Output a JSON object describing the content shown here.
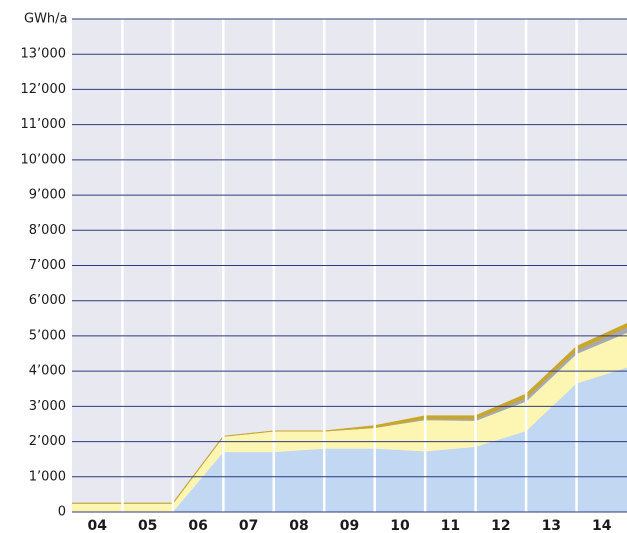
{
  "chart_data": {
    "type": "stacked_area",
    "y_label": "GWh/a",
    "categories": [
      "04",
      "05",
      "06",
      "07",
      "08",
      "09",
      "10",
      "11",
      "12",
      "13",
      "14"
    ],
    "series": [
      {
        "color": "#c2d7f1",
        "values": [
          0,
          0,
          1700,
          1700,
          1800,
          1800,
          1720,
          1850,
          2300,
          3650,
          4100
        ]
      },
      {
        "color": "#fdf6b2",
        "values": [
          250,
          250,
          450,
          600,
          500,
          600,
          900,
          750,
          850,
          850,
          1000
        ]
      },
      {
        "color": "#a7a9b2",
        "values": [
          0,
          0,
          0,
          0,
          0,
          0,
          30,
          50,
          100,
          100,
          150
        ]
      },
      {
        "color": "#c9a72a",
        "values": [
          0,
          0,
          0,
          0,
          0,
          50,
          80,
          80,
          100,
          100,
          100
        ]
      }
    ],
    "ylim": [
      0,
      14000
    ],
    "yticks": [
      0,
      {
        "value": 1000,
        "label": "1’000"
      },
      {
        "value": 2000,
        "label": "2’000"
      },
      {
        "value": 3000,
        "label": "3’000"
      },
      {
        "value": 4000,
        "label": "4’000"
      },
      {
        "value": 5000,
        "label": "5’000"
      },
      {
        "value": 6000,
        "label": "6’000"
      },
      {
        "value": 7000,
        "label": "7’000"
      },
      {
        "value": 8000,
        "label": "8’000"
      },
      {
        "value": 9000,
        "label": "9’000"
      },
      {
        "value": 10000,
        "label": "10’000"
      },
      {
        "value": 11000,
        "label": "11’000"
      },
      {
        "value": 12000,
        "label": "12’000"
      },
      {
        "value": 13000,
        "label": "13’000"
      }
    ],
    "grid": true
  }
}
